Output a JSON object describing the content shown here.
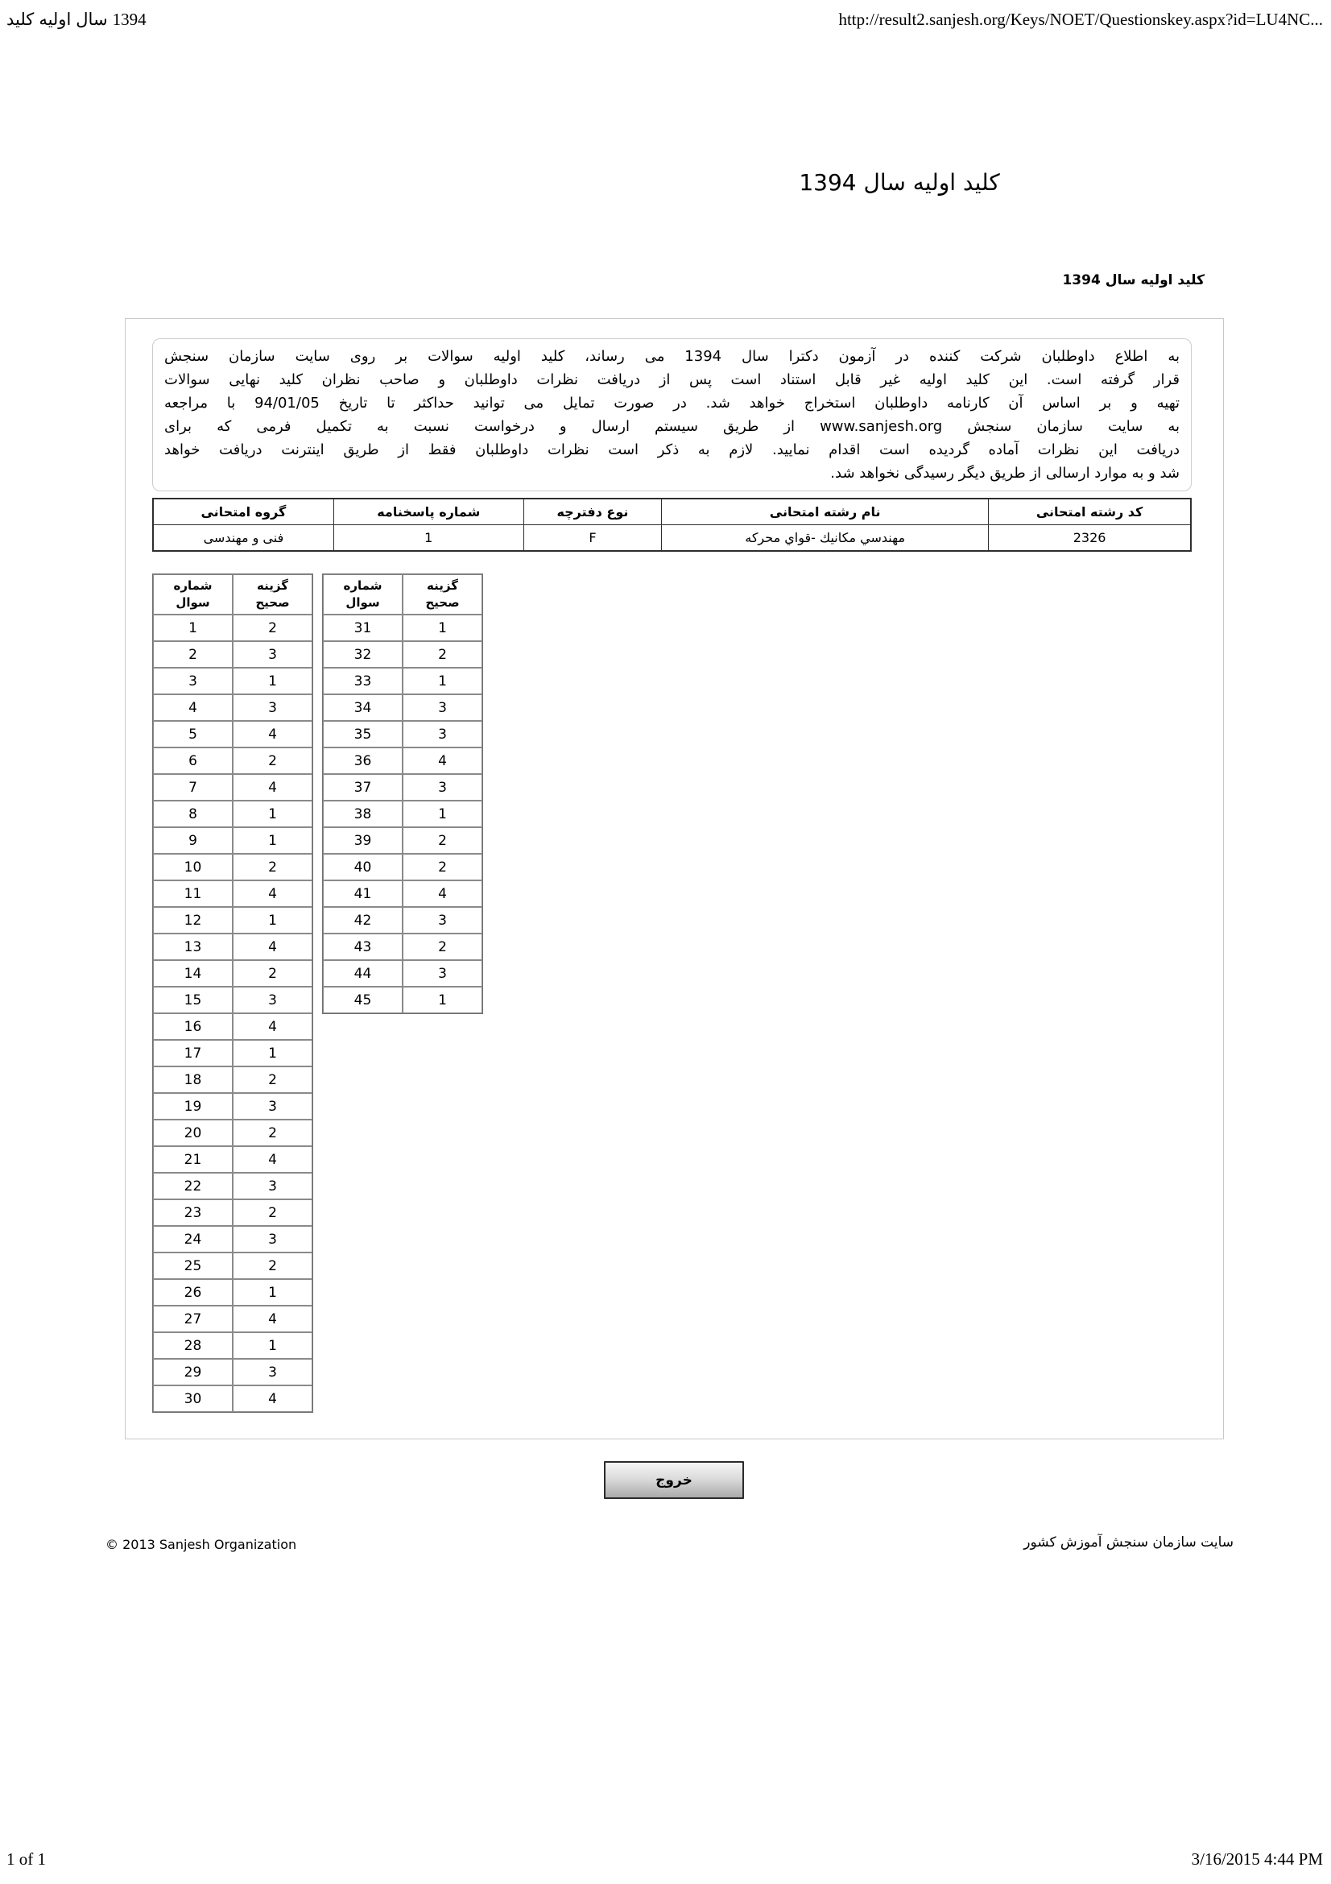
{
  "print_header": {
    "left_title": "کلید اولیه سال 1394",
    "right_url": "http://result2.sanjesh.org/Keys/NOET/Questionskey.aspx?id=LU4NC..."
  },
  "print_footer": {
    "left": "1 of 1",
    "right": "3/16/2015 4:44 PM"
  },
  "page": {
    "title": "کلید اولیه سال 1394",
    "subtitle": "کلید اولیه سال 1394"
  },
  "notice": {
    "lines": [
      "به اطلاع داوطلبان شرکت کننده در آزمون دکترا سال 1394 می رساند، کلید اولیه سوالات بر روی سایت سازمان سنجش",
      "قرار گرفته است. این کلید اولیه غیر قابل استناد است پس از دریافت نظرات داوطلبان و صاحب نظران کلید نهایی سوالات",
      "تهیه و بر اساس آن کارنامه داوطلبان استخراج خواهد شد. در صورت تمایل می توانید حداکثر تا تاریخ 94/01/05 با مراجعه",
      "به سایت سازمان سنجش www.sanjesh.org از طریق سیستم ارسال و درخواست نسبت به تکمیل فرمی که برای",
      "دریافت این نظرات آماده گردیده است اقدام نمایید. لازم به ذکر است نظرات داوطلبان فقط از طریق اینترنت دریافت خواهد",
      "شد و به موارد ارسالی از طریق دیگر رسیدگی نخواهد شد."
    ]
  },
  "info_table": {
    "headers": [
      "کد رشته امتحانی",
      "نام رشته امتحانی",
      "نوع دفترچه",
      "شماره پاسخنامه",
      "گروه امتحانی"
    ],
    "values": [
      "2326",
      "مهندسي مكانيك -قواي محركه",
      "F",
      "1",
      "فنی و مهندسی"
    ]
  },
  "key_header": {
    "q1": "شماره",
    "q2": "سوال",
    "a1": "گزینه",
    "a2": "صحیح"
  },
  "key_tables": [
    {
      "rows": [
        [
          "1",
          "2"
        ],
        [
          "2",
          "3"
        ],
        [
          "3",
          "1"
        ],
        [
          "4",
          "3"
        ],
        [
          "5",
          "4"
        ],
        [
          "6",
          "2"
        ],
        [
          "7",
          "4"
        ],
        [
          "8",
          "1"
        ],
        [
          "9",
          "1"
        ],
        [
          "10",
          "2"
        ],
        [
          "11",
          "4"
        ],
        [
          "12",
          "1"
        ],
        [
          "13",
          "4"
        ],
        [
          "14",
          "2"
        ],
        [
          "15",
          "3"
        ],
        [
          "16",
          "4"
        ],
        [
          "17",
          "1"
        ],
        [
          "18",
          "2"
        ],
        [
          "19",
          "3"
        ],
        [
          "20",
          "2"
        ],
        [
          "21",
          "4"
        ],
        [
          "22",
          "3"
        ],
        [
          "23",
          "2"
        ],
        [
          "24",
          "3"
        ],
        [
          "25",
          "2"
        ],
        [
          "26",
          "1"
        ],
        [
          "27",
          "4"
        ],
        [
          "28",
          "1"
        ],
        [
          "29",
          "3"
        ],
        [
          "30",
          "4"
        ]
      ]
    },
    {
      "rows": [
        [
          "31",
          "1"
        ],
        [
          "32",
          "2"
        ],
        [
          "33",
          "1"
        ],
        [
          "34",
          "3"
        ],
        [
          "35",
          "3"
        ],
        [
          "36",
          "4"
        ],
        [
          "37",
          "3"
        ],
        [
          "38",
          "1"
        ],
        [
          "39",
          "2"
        ],
        [
          "40",
          "2"
        ],
        [
          "41",
          "4"
        ],
        [
          "42",
          "3"
        ],
        [
          "43",
          "2"
        ],
        [
          "44",
          "3"
        ],
        [
          "45",
          "1"
        ]
      ]
    }
  ],
  "button": {
    "label": "خروج"
  },
  "site_footer": {
    "left": "© 2013 Sanjesh Organization",
    "right": "سایت سازمان سنجش آموزش کشور"
  }
}
